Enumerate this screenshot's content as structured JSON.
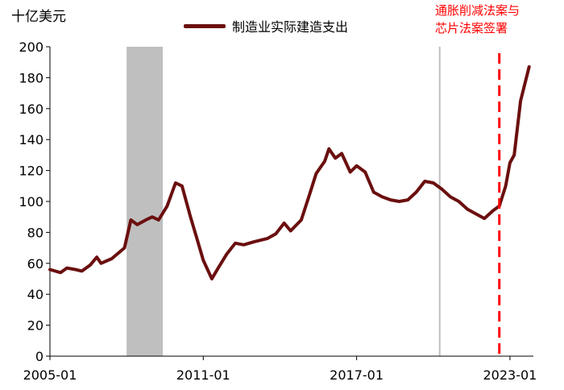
{
  "chart_data": {
    "type": "line",
    "unit_label": "十亿美元",
    "series": [
      {
        "name": "制造业实际建造支出",
        "color": "#6b0f0f",
        "points": [
          [
            "2005-01",
            56
          ],
          [
            "2005-06",
            54
          ],
          [
            "2005-09",
            57
          ],
          [
            "2006-01",
            56
          ],
          [
            "2006-04",
            55
          ],
          [
            "2006-08",
            59
          ],
          [
            "2006-11",
            64
          ],
          [
            "2007-01",
            60
          ],
          [
            "2007-06",
            63
          ],
          [
            "2007-12",
            70
          ],
          [
            "2008-03",
            88
          ],
          [
            "2008-06",
            85
          ],
          [
            "2008-10",
            88
          ],
          [
            "2009-01",
            90
          ],
          [
            "2009-04",
            88
          ],
          [
            "2009-08",
            97
          ],
          [
            "2009-12",
            112
          ],
          [
            "2010-03",
            110
          ],
          [
            "2010-07",
            90
          ],
          [
            "2010-10",
            76
          ],
          [
            "2011-01",
            62
          ],
          [
            "2011-05",
            50
          ],
          [
            "2011-08",
            57
          ],
          [
            "2011-12",
            66
          ],
          [
            "2012-04",
            73
          ],
          [
            "2012-08",
            72
          ],
          [
            "2013-01",
            74
          ],
          [
            "2013-07",
            76
          ],
          [
            "2013-11",
            79
          ],
          [
            "2014-03",
            86
          ],
          [
            "2014-06",
            81
          ],
          [
            "2014-11",
            88
          ],
          [
            "2015-03",
            105
          ],
          [
            "2015-06",
            118
          ],
          [
            "2015-10",
            126
          ],
          [
            "2015-12",
            134
          ],
          [
            "2016-03",
            128
          ],
          [
            "2016-06",
            131
          ],
          [
            "2016-10",
            119
          ],
          [
            "2017-01",
            123
          ],
          [
            "2017-05",
            119
          ],
          [
            "2017-09",
            106
          ],
          [
            "2018-01",
            103
          ],
          [
            "2018-05",
            101
          ],
          [
            "2018-09",
            100
          ],
          [
            "2019-01",
            101
          ],
          [
            "2019-05",
            106
          ],
          [
            "2019-09",
            113
          ],
          [
            "2020-01",
            112
          ],
          [
            "2020-05",
            108
          ],
          [
            "2020-09",
            103
          ],
          [
            "2021-01",
            100
          ],
          [
            "2021-05",
            95
          ],
          [
            "2021-09",
            92
          ],
          [
            "2022-01",
            89
          ],
          [
            "2022-05",
            94
          ],
          [
            "2022-08",
            97
          ],
          [
            "2022-11",
            110
          ],
          [
            "2023-01",
            125
          ],
          [
            "2023-03",
            130
          ],
          [
            "2023-06",
            165
          ],
          [
            "2023-10",
            187
          ]
        ]
      }
    ],
    "xaxis": {
      "type": "date",
      "range": [
        "2005-01",
        "2023-12"
      ],
      "ticks": [
        "2005-01",
        "2011-01",
        "2017-01",
        "2023-01"
      ]
    },
    "yaxis": {
      "range": [
        0,
        200
      ],
      "ticks": [
        0,
        20,
        40,
        60,
        80,
        100,
        120,
        140,
        160,
        180,
        200
      ]
    },
    "shaded_region": {
      "start": "2008-01",
      "end": "2009-06",
      "color": "#bfbfbf"
    },
    "vertical_line": {
      "at": "2020-04",
      "color": "#bfbfbf"
    },
    "event_line": {
      "at": "2022-08",
      "color": "#ff0000",
      "style": "dashed"
    },
    "annotation": {
      "lines": [
        "通胀削减法案与",
        "芯片法案签署"
      ],
      "color": "#ff0000"
    },
    "legend_position": "top-center",
    "grid": false
  }
}
